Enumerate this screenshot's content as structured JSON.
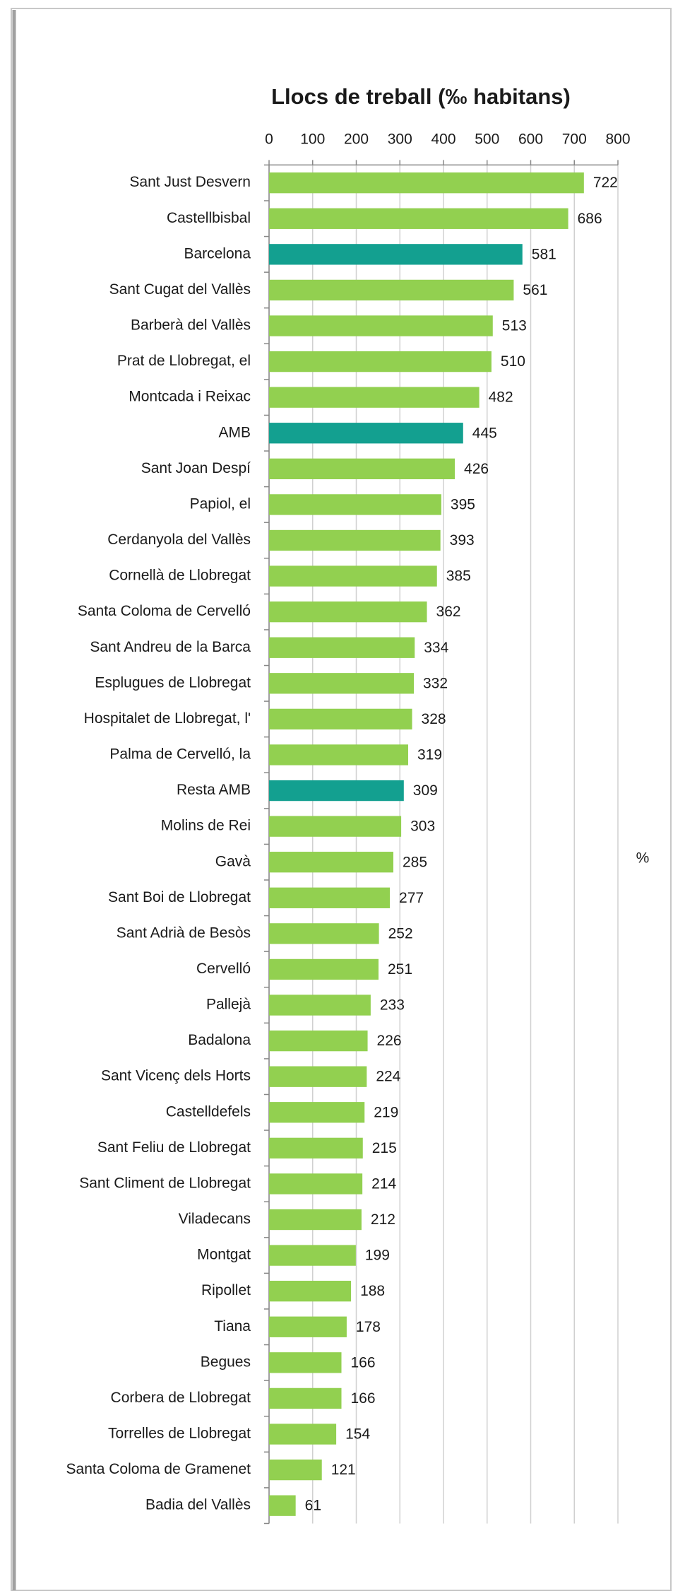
{
  "chart_data": {
    "type": "barh",
    "title": "Llocs de treball (‰ habitans)",
    "annotation": "%",
    "categories": [
      "Sant Just Desvern",
      "Castellbisbal",
      "Barcelona",
      "Sant Cugat del Vallès",
      "Barberà del Vallès",
      "Prat de Llobregat, el",
      "Montcada i Reixac",
      "AMB",
      "Sant Joan Despí",
      "Papiol, el",
      "Cerdanyola del Vallès",
      "Cornellà de Llobregat",
      "Santa Coloma de Cervelló",
      "Sant Andreu de la Barca",
      "Esplugues de Llobregat",
      "Hospitalet de Llobregat, l'",
      "Palma de Cervelló, la",
      "Resta AMB",
      "Molins de Rei",
      "Gavà",
      "Sant Boi de Llobregat",
      "Sant Adrià de Besòs",
      "Cervelló",
      "Pallejà",
      "Badalona",
      "Sant Vicenç dels Horts",
      "Castelldefels",
      "Sant Feliu de Llobregat",
      "Sant Climent de Llobregat",
      "Viladecans",
      "Montgat",
      "Ripollet",
      "Tiana",
      "Begues",
      "Corbera de Llobregat",
      "Torrelles de Llobregat",
      "Santa Coloma de Gramenet",
      "Badia del Vallès"
    ],
    "values": [
      722,
      686,
      581,
      561,
      513,
      510,
      482,
      445,
      426,
      395,
      393,
      385,
      362,
      334,
      332,
      328,
      319,
      309,
      303,
      285,
      277,
      252,
      251,
      233,
      226,
      224,
      219,
      215,
      214,
      212,
      199,
      188,
      178,
      166,
      166,
      154,
      121,
      61
    ],
    "colors": [
      "#92d050",
      "#92d050",
      "#13a090",
      "#92d050",
      "#92d050",
      "#92d050",
      "#92d050",
      "#13a090",
      "#92d050",
      "#92d050",
      "#92d050",
      "#92d050",
      "#92d050",
      "#92d050",
      "#92d050",
      "#92d050",
      "#92d050",
      "#13a090",
      "#92d050",
      "#92d050",
      "#92d050",
      "#92d050",
      "#92d050",
      "#92d050",
      "#92d050",
      "#92d050",
      "#92d050",
      "#92d050",
      "#92d050",
      "#92d050",
      "#92d050",
      "#92d050",
      "#92d050",
      "#92d050",
      "#92d050",
      "#92d050",
      "#92d050",
      "#92d050"
    ],
    "xlim": [
      0,
      800
    ],
    "xticks": [
      0,
      100,
      200,
      300,
      400,
      500,
      600,
      700,
      800
    ],
    "grid": true
  }
}
